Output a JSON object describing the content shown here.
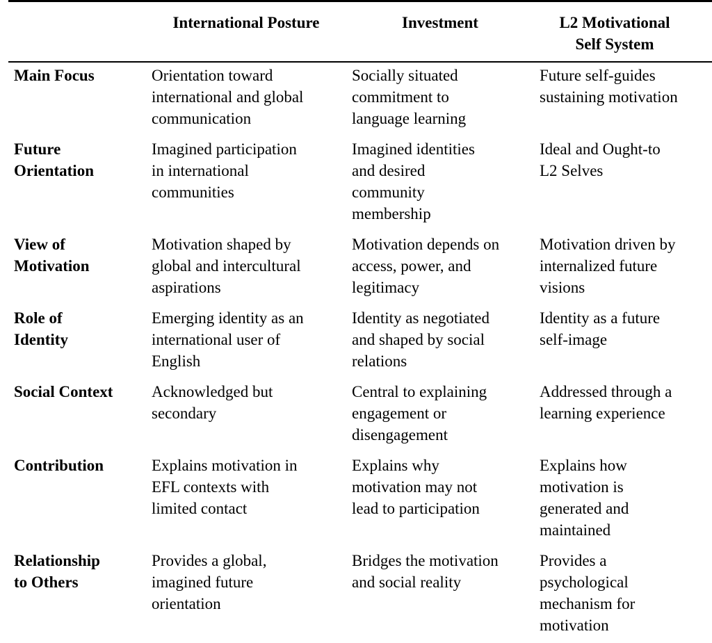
{
  "table": {
    "header": {
      "col1": "",
      "col2": "International Posture",
      "col3": "Investment",
      "col4": "L2 Motivational\nSelf System"
    },
    "rows": [
      {
        "label": "Main Focus",
        "international_posture": "Orientation toward\ninternational and global\ncommunication",
        "investment": "Socially situated\ncommitment to\nlanguage learning",
        "l2_motivational_self_system": "Future self-guides\nsustaining motivation"
      },
      {
        "label": "Future\nOrientation",
        "international_posture": "Imagined participation\nin international\ncommunities",
        "investment": "Imagined identities\nand desired\ncommunity\nmembership",
        "l2_motivational_self_system": "Ideal and Ought-to\nL2 Selves"
      },
      {
        "label": "View of\nMotivation",
        "international_posture": "Motivation shaped by\nglobal and intercultural\naspirations",
        "investment": "Motivation depends on\naccess, power, and\nlegitimacy",
        "l2_motivational_self_system": "Motivation driven by\ninternalized future\nvisions"
      },
      {
        "label": "Role of\nIdentity",
        "international_posture": "Emerging identity as an\ninternational user of\nEnglish",
        "investment": "Identity as negotiated\nand shaped by social\nrelations",
        "l2_motivational_self_system": "Identity as a future\nself-image"
      },
      {
        "label": "Social Context",
        "international_posture": "Acknowledged but\nsecondary",
        "investment": "Central to explaining\nengagement or\ndisengagement",
        "l2_motivational_self_system": "Addressed through a\nlearning experience"
      },
      {
        "label": "Contribution",
        "international_posture": "Explains motivation in\nEFL contexts with\nlimited contact",
        "investment": "Explains why\nmotivation may not\nlead to participation",
        "l2_motivational_self_system": "Explains how\nmotivation is\ngenerated and\nmaintained"
      },
      {
        "label": "Relationship\nto Others",
        "international_posture": "Provides a global,\nimagined future\norientation",
        "investment": "Bridges the motivation\nand social reality",
        "l2_motivational_self_system": "Provides a\npsychological\nmechanism for\nmotivation"
      }
    ]
  }
}
